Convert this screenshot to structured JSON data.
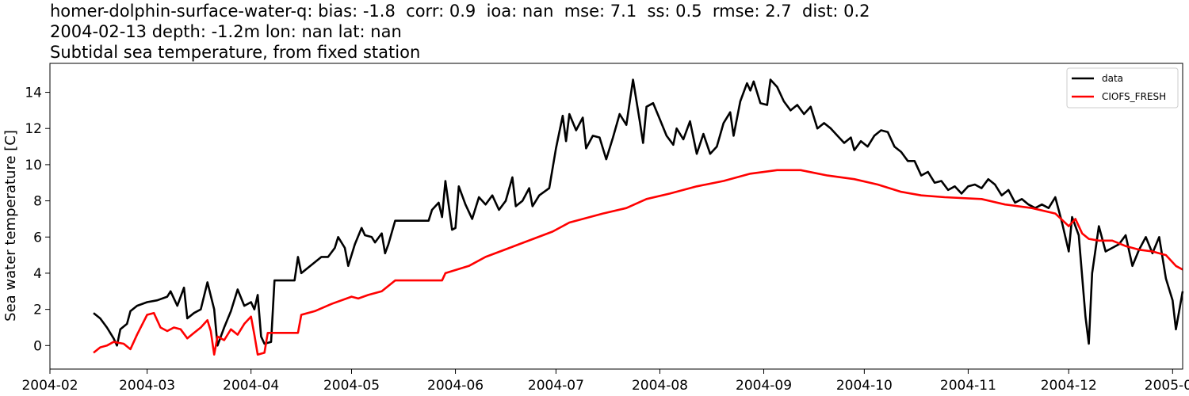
{
  "chart_data": {
    "type": "line",
    "title_lines": [
      "homer-dolphin-surface-water-q: bias: -1.8  corr: 0.9  ioa: nan  mse: 7.1  ss: 0.5  rmse: 2.7  dist: 0.2",
      "2004-02-13 depth: -1.2m lon: nan lat: nan",
      "Subtidal sea temperature, from fixed station"
    ],
    "ylabel": "Sea water temperature [C]",
    "xlabel": "",
    "xlim": [
      "2004-02-01",
      "2005-01-04"
    ],
    "ylim": [
      -1.3,
      15.6
    ],
    "x_ticks": [
      "2004-02",
      "2004-03",
      "2004-04",
      "2004-05",
      "2004-06",
      "2004-07",
      "2004-08",
      "2004-09",
      "2004-10",
      "2004-11",
      "2004-12",
      "2005-01"
    ],
    "y_ticks": [
      0,
      2,
      4,
      6,
      8,
      10,
      12,
      14
    ],
    "grid": false,
    "legend_position": "top-right",
    "series": [
      {
        "name": "data",
        "color": "#000000",
        "points": [
          [
            "2004-02-14",
            1.8
          ],
          [
            "2004-02-16",
            1.5
          ],
          [
            "2004-02-18",
            1.0
          ],
          [
            "2004-02-20",
            0.4
          ],
          [
            "2004-02-21",
            0.0
          ],
          [
            "2004-02-22",
            0.9
          ],
          [
            "2004-02-24",
            1.2
          ],
          [
            "2004-02-25",
            1.9
          ],
          [
            "2004-02-27",
            2.2
          ],
          [
            "2004-03-01",
            2.4
          ],
          [
            "2004-03-04",
            2.5
          ],
          [
            "2004-03-07",
            2.7
          ],
          [
            "2004-03-08",
            3.0
          ],
          [
            "2004-03-10",
            2.2
          ],
          [
            "2004-03-12",
            3.2
          ],
          [
            "2004-03-13",
            1.5
          ],
          [
            "2004-03-15",
            1.8
          ],
          [
            "2004-03-17",
            2.0
          ],
          [
            "2004-03-19",
            3.5
          ],
          [
            "2004-03-21",
            2.0
          ],
          [
            "2004-03-22",
            0.0
          ],
          [
            "2004-03-24",
            1.0
          ],
          [
            "2004-03-26",
            1.9
          ],
          [
            "2004-03-28",
            3.1
          ],
          [
            "2004-03-30",
            2.2
          ],
          [
            "2004-04-01",
            2.4
          ],
          [
            "2004-04-02",
            2.0
          ],
          [
            "2004-04-03",
            2.8
          ],
          [
            "2004-04-04",
            0.5
          ],
          [
            "2004-04-05",
            0.1
          ],
          [
            "2004-04-07",
            0.2
          ],
          [
            "2004-04-08",
            3.6
          ],
          [
            "2004-04-14",
            3.6
          ],
          [
            "2004-04-15",
            4.9
          ],
          [
            "2004-04-16",
            4.0
          ],
          [
            "2004-04-18",
            4.3
          ],
          [
            "2004-04-20",
            4.6
          ],
          [
            "2004-04-22",
            4.9
          ],
          [
            "2004-04-24",
            4.9
          ],
          [
            "2004-04-26",
            5.4
          ],
          [
            "2004-04-27",
            6.0
          ],
          [
            "2004-04-29",
            5.4
          ],
          [
            "2004-04-30",
            4.4
          ],
          [
            "2004-05-02",
            5.6
          ],
          [
            "2004-05-04",
            6.5
          ],
          [
            "2004-05-05",
            6.1
          ],
          [
            "2004-05-07",
            6.0
          ],
          [
            "2004-05-08",
            5.7
          ],
          [
            "2004-05-10",
            6.2
          ],
          [
            "2004-05-11",
            5.1
          ],
          [
            "2004-05-12",
            5.6
          ],
          [
            "2004-05-14",
            6.9
          ],
          [
            "2004-05-24",
            6.9
          ],
          [
            "2004-05-25",
            7.5
          ],
          [
            "2004-05-27",
            7.9
          ],
          [
            "2004-05-28",
            7.1
          ],
          [
            "2004-05-29",
            9.1
          ],
          [
            "2004-05-31",
            6.4
          ],
          [
            "2004-06-01",
            6.5
          ],
          [
            "2004-06-02",
            8.8
          ],
          [
            "2004-06-04",
            7.8
          ],
          [
            "2004-06-06",
            7.0
          ],
          [
            "2004-06-08",
            8.2
          ],
          [
            "2004-06-10",
            7.8
          ],
          [
            "2004-06-12",
            8.3
          ],
          [
            "2004-06-14",
            7.5
          ],
          [
            "2004-06-16",
            8.0
          ],
          [
            "2004-06-18",
            9.3
          ],
          [
            "2004-06-19",
            7.7
          ],
          [
            "2004-06-21",
            8.0
          ],
          [
            "2004-06-23",
            8.7
          ],
          [
            "2004-06-24",
            7.7
          ],
          [
            "2004-06-26",
            8.3
          ],
          [
            "2004-06-29",
            8.7
          ],
          [
            "2004-07-01",
            10.9
          ],
          [
            "2004-07-03",
            12.7
          ],
          [
            "2004-07-04",
            11.3
          ],
          [
            "2004-07-05",
            12.8
          ],
          [
            "2004-07-07",
            11.9
          ],
          [
            "2004-07-09",
            12.6
          ],
          [
            "2004-07-10",
            10.9
          ],
          [
            "2004-07-12",
            11.6
          ],
          [
            "2004-07-14",
            11.5
          ],
          [
            "2004-07-16",
            10.3
          ],
          [
            "2004-07-18",
            11.5
          ],
          [
            "2004-07-20",
            12.8
          ],
          [
            "2004-07-22",
            12.2
          ],
          [
            "2004-07-24",
            14.7
          ],
          [
            "2004-07-26",
            12.4
          ],
          [
            "2004-07-27",
            11.2
          ],
          [
            "2004-07-28",
            13.2
          ],
          [
            "2004-07-30",
            13.4
          ],
          [
            "2004-08-01",
            12.5
          ],
          [
            "2004-08-03",
            11.6
          ],
          [
            "2004-08-05",
            11.1
          ],
          [
            "2004-08-06",
            12.0
          ],
          [
            "2004-08-08",
            11.4
          ],
          [
            "2004-08-10",
            12.4
          ],
          [
            "2004-08-12",
            10.6
          ],
          [
            "2004-08-14",
            11.7
          ],
          [
            "2004-08-16",
            10.6
          ],
          [
            "2004-08-18",
            11.0
          ],
          [
            "2004-08-20",
            12.3
          ],
          [
            "2004-08-22",
            12.9
          ],
          [
            "2004-08-23",
            11.6
          ],
          [
            "2004-08-25",
            13.5
          ],
          [
            "2004-08-27",
            14.5
          ],
          [
            "2004-08-28",
            14.1
          ],
          [
            "2004-08-29",
            14.6
          ],
          [
            "2004-08-31",
            13.4
          ],
          [
            "2004-09-02",
            13.3
          ],
          [
            "2004-09-03",
            14.7
          ],
          [
            "2004-09-05",
            14.3
          ],
          [
            "2004-09-07",
            13.5
          ],
          [
            "2004-09-09",
            13.0
          ],
          [
            "2004-09-11",
            13.3
          ],
          [
            "2004-09-13",
            12.8
          ],
          [
            "2004-09-15",
            13.2
          ],
          [
            "2004-09-17",
            12.0
          ],
          [
            "2004-09-19",
            12.3
          ],
          [
            "2004-09-21",
            12.0
          ],
          [
            "2004-09-23",
            11.6
          ],
          [
            "2004-09-25",
            11.2
          ],
          [
            "2004-09-27",
            11.5
          ],
          [
            "2004-09-28",
            10.8
          ],
          [
            "2004-09-30",
            11.3
          ],
          [
            "2004-10-02",
            11.0
          ],
          [
            "2004-10-04",
            11.6
          ],
          [
            "2004-10-06",
            11.9
          ],
          [
            "2004-10-08",
            11.8
          ],
          [
            "2004-10-10",
            11.0
          ],
          [
            "2004-10-12",
            10.7
          ],
          [
            "2004-10-14",
            10.2
          ],
          [
            "2004-10-16",
            10.2
          ],
          [
            "2004-10-18",
            9.4
          ],
          [
            "2004-10-20",
            9.6
          ],
          [
            "2004-10-22",
            9.0
          ],
          [
            "2004-10-24",
            9.1
          ],
          [
            "2004-10-26",
            8.6
          ],
          [
            "2004-10-28",
            8.8
          ],
          [
            "2004-10-30",
            8.4
          ],
          [
            "2004-11-01",
            8.8
          ],
          [
            "2004-11-03",
            8.9
          ],
          [
            "2004-11-05",
            8.7
          ],
          [
            "2004-11-07",
            9.2
          ],
          [
            "2004-11-09",
            8.9
          ],
          [
            "2004-11-11",
            8.3
          ],
          [
            "2004-11-13",
            8.6
          ],
          [
            "2004-11-15",
            7.9
          ],
          [
            "2004-11-17",
            8.1
          ],
          [
            "2004-11-19",
            7.8
          ],
          [
            "2004-11-21",
            7.6
          ],
          [
            "2004-11-23",
            7.8
          ],
          [
            "2004-11-25",
            7.6
          ],
          [
            "2004-11-27",
            8.2
          ],
          [
            "2004-11-29",
            6.8
          ],
          [
            "2004-12-01",
            5.2
          ],
          [
            "2004-12-02",
            7.1
          ],
          [
            "2004-12-04",
            6.1
          ],
          [
            "2004-12-06",
            1.6
          ],
          [
            "2004-12-07",
            0.1
          ],
          [
            "2004-12-08",
            4.0
          ],
          [
            "2004-12-10",
            6.6
          ],
          [
            "2004-12-12",
            5.2
          ],
          [
            "2004-12-14",
            5.4
          ],
          [
            "2004-12-16",
            5.6
          ],
          [
            "2004-12-18",
            6.1
          ],
          [
            "2004-12-20",
            4.4
          ],
          [
            "2004-12-22",
            5.3
          ],
          [
            "2004-12-24",
            6.0
          ],
          [
            "2004-12-26",
            5.1
          ],
          [
            "2004-12-28",
            6.0
          ],
          [
            "2004-12-30",
            3.7
          ],
          [
            "2005-01-01",
            2.5
          ],
          [
            "2005-01-02",
            0.9
          ],
          [
            "2005-01-04",
            3.0
          ]
        ]
      },
      {
        "name": "CIOFS_FRESH",
        "color": "#ff0000",
        "points": [
          [
            "2004-02-14",
            -0.4
          ],
          [
            "2004-02-16",
            -0.1
          ],
          [
            "2004-02-18",
            0.0
          ],
          [
            "2004-02-20",
            0.2
          ],
          [
            "2004-02-23",
            0.1
          ],
          [
            "2004-02-25",
            -0.2
          ],
          [
            "2004-02-27",
            0.6
          ],
          [
            "2004-03-01",
            1.7
          ],
          [
            "2004-03-03",
            1.8
          ],
          [
            "2004-03-05",
            1.0
          ],
          [
            "2004-03-07",
            0.8
          ],
          [
            "2004-03-09",
            1.0
          ],
          [
            "2004-03-11",
            0.9
          ],
          [
            "2004-03-13",
            0.4
          ],
          [
            "2004-03-15",
            0.7
          ],
          [
            "2004-03-17",
            1.0
          ],
          [
            "2004-03-19",
            1.4
          ],
          [
            "2004-03-20",
            0.8
          ],
          [
            "2004-03-21",
            -0.5
          ],
          [
            "2004-03-22",
            0.5
          ],
          [
            "2004-03-24",
            0.3
          ],
          [
            "2004-03-26",
            0.9
          ],
          [
            "2004-03-28",
            0.6
          ],
          [
            "2004-03-30",
            1.2
          ],
          [
            "2004-04-01",
            1.6
          ],
          [
            "2004-04-02",
            0.6
          ],
          [
            "2004-04-03",
            -0.5
          ],
          [
            "2004-04-05",
            -0.4
          ],
          [
            "2004-04-06",
            0.7
          ],
          [
            "2004-04-15",
            0.7
          ],
          [
            "2004-04-16",
            1.7
          ],
          [
            "2004-04-20",
            1.9
          ],
          [
            "2004-04-25",
            2.3
          ],
          [
            "2004-05-01",
            2.7
          ],
          [
            "2004-05-03",
            2.6
          ],
          [
            "2004-05-06",
            2.8
          ],
          [
            "2004-05-10",
            3.0
          ],
          [
            "2004-05-14",
            3.6
          ],
          [
            "2004-05-28",
            3.6
          ],
          [
            "2004-05-29",
            4.0
          ],
          [
            "2004-06-05",
            4.4
          ],
          [
            "2004-06-10",
            4.9
          ],
          [
            "2004-06-20",
            5.6
          ],
          [
            "2004-06-30",
            6.3
          ],
          [
            "2004-07-05",
            6.8
          ],
          [
            "2004-07-15",
            7.3
          ],
          [
            "2004-07-22",
            7.6
          ],
          [
            "2004-07-28",
            8.1
          ],
          [
            "2004-08-04",
            8.4
          ],
          [
            "2004-08-12",
            8.8
          ],
          [
            "2004-08-20",
            9.1
          ],
          [
            "2004-08-28",
            9.5
          ],
          [
            "2004-09-05",
            9.7
          ],
          [
            "2004-09-12",
            9.7
          ],
          [
            "2004-09-20",
            9.4
          ],
          [
            "2004-09-28",
            9.2
          ],
          [
            "2004-10-05",
            8.9
          ],
          [
            "2004-10-12",
            8.5
          ],
          [
            "2004-10-18",
            8.3
          ],
          [
            "2004-10-25",
            8.2
          ],
          [
            "2004-11-05",
            8.1
          ],
          [
            "2004-11-12",
            7.8
          ],
          [
            "2004-11-20",
            7.6
          ],
          [
            "2004-11-27",
            7.3
          ],
          [
            "2004-12-01",
            6.6
          ],
          [
            "2004-12-03",
            7.0
          ],
          [
            "2004-12-05",
            6.2
          ],
          [
            "2004-12-07",
            5.9
          ],
          [
            "2004-12-10",
            5.8
          ],
          [
            "2004-12-14",
            5.8
          ],
          [
            "2004-12-18",
            5.5
          ],
          [
            "2004-12-22",
            5.3
          ],
          [
            "2004-12-26",
            5.2
          ],
          [
            "2004-12-30",
            5.0
          ],
          [
            "2005-01-02",
            4.4
          ],
          [
            "2005-01-04",
            4.2
          ]
        ]
      }
    ]
  }
}
